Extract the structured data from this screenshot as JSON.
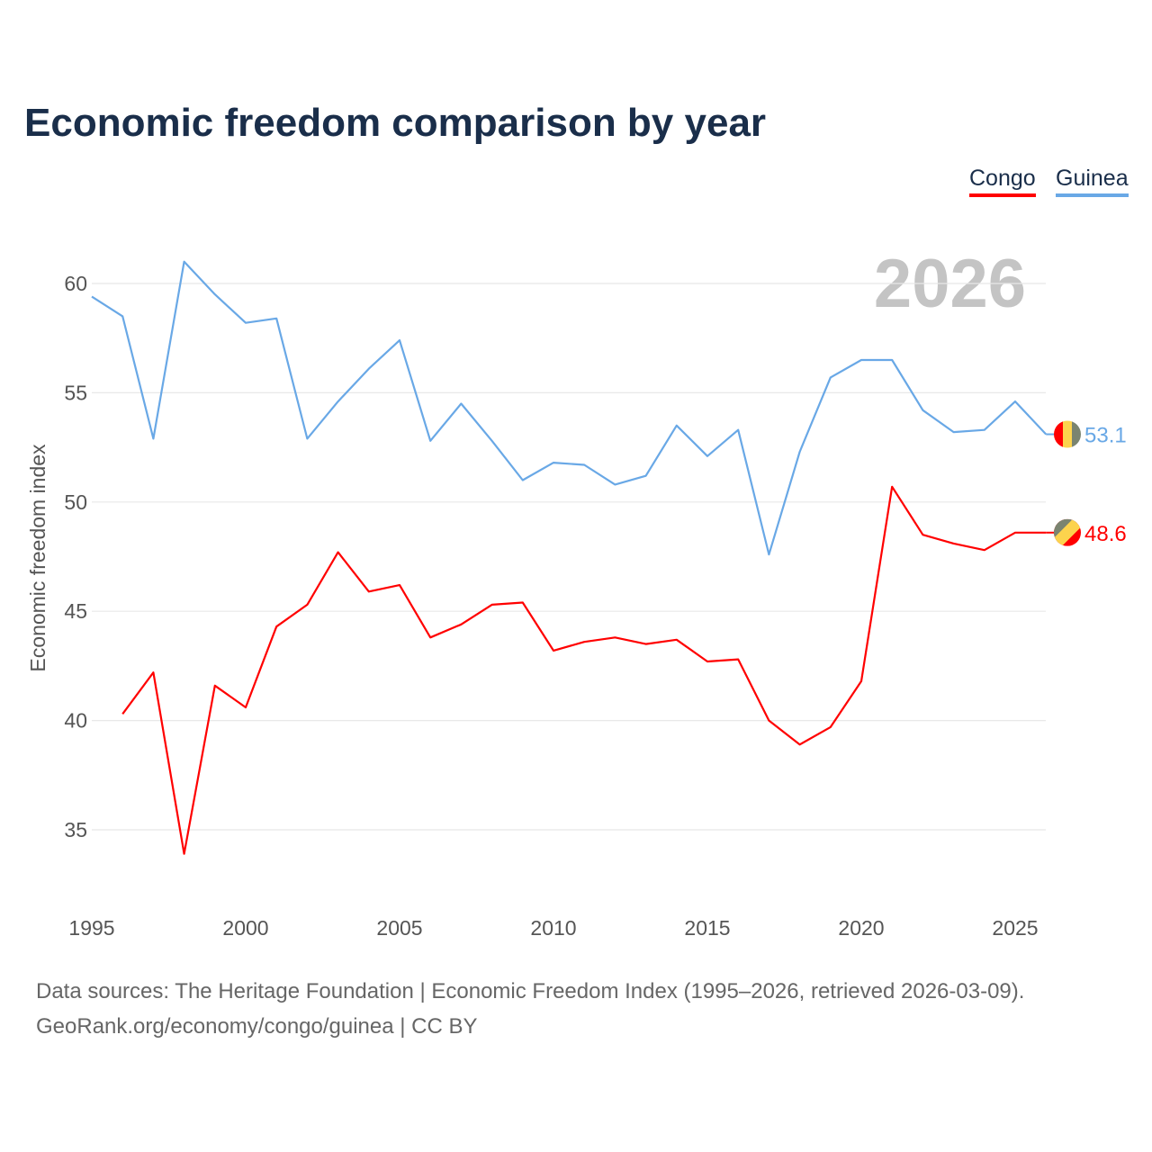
{
  "chart_data": {
    "type": "line",
    "title": "Economic freedom comparison by year",
    "ylabel": "Economic freedom index",
    "xlabel": "",
    "year_watermark": "2026",
    "xlim": [
      1995,
      2026
    ],
    "ylim": [
      32,
      62
    ],
    "xticks": [
      1995,
      2000,
      2005,
      2010,
      2015,
      2020,
      2025
    ],
    "yticks": [
      35,
      40,
      45,
      50,
      55,
      60
    ],
    "grid": true,
    "legend_position": "top-right",
    "series": [
      {
        "name": "Congo",
        "color": "#ff0000",
        "end_label": "48.6",
        "x": [
          1996,
          1997,
          1998,
          1999,
          2000,
          2001,
          2002,
          2003,
          2004,
          2005,
          2006,
          2007,
          2008,
          2009,
          2010,
          2011,
          2012,
          2013,
          2014,
          2015,
          2016,
          2017,
          2018,
          2019,
          2020,
          2021,
          2022,
          2023,
          2024,
          2025,
          2026
        ],
        "values": [
          40.3,
          42.2,
          33.9,
          41.6,
          40.6,
          44.3,
          45.3,
          47.7,
          45.9,
          46.2,
          43.8,
          44.4,
          45.3,
          45.4,
          43.2,
          43.6,
          43.8,
          43.5,
          43.7,
          42.7,
          42.8,
          40.0,
          38.9,
          39.7,
          41.8,
          50.7,
          48.5,
          48.1,
          47.8,
          48.6,
          48.6
        ]
      },
      {
        "name": "Guinea",
        "color": "#69a8e6",
        "end_label": "53.1",
        "x": [
          1995,
          1996,
          1997,
          1998,
          1999,
          2000,
          2001,
          2002,
          2003,
          2004,
          2005,
          2006,
          2007,
          2008,
          2009,
          2010,
          2011,
          2012,
          2013,
          2014,
          2015,
          2016,
          2017,
          2018,
          2019,
          2020,
          2021,
          2022,
          2023,
          2024,
          2025,
          2026
        ],
        "values": [
          59.4,
          58.5,
          52.9,
          61.0,
          59.5,
          58.2,
          58.4,
          52.9,
          54.6,
          56.1,
          57.4,
          52.8,
          54.5,
          52.8,
          51.0,
          51.8,
          51.7,
          50.8,
          51.2,
          53.5,
          52.1,
          53.3,
          47.6,
          52.3,
          55.7,
          56.5,
          56.5,
          54.2,
          53.2,
          53.3,
          54.6,
          53.1
        ]
      }
    ]
  },
  "footer": {
    "line1": "Data sources: The Heritage Foundation | Economic Freedom Index (1995–2026, retrieved 2026-03-09).",
    "line2": "GeoRank.org/economy/congo/guinea | CC BY"
  }
}
